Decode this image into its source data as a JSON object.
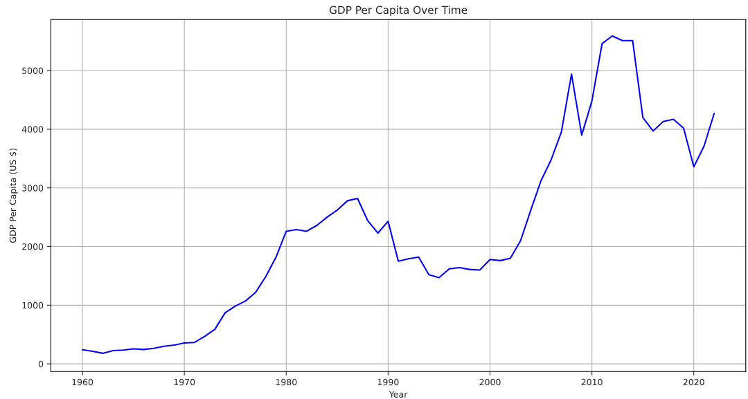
{
  "chart_data": {
    "type": "line",
    "title": "GDP Per Capita Over Time",
    "xlabel": "Year",
    "ylabel": "GDP Per Capita (US $)",
    "x": [
      1960,
      1961,
      1962,
      1963,
      1964,
      1965,
      1966,
      1967,
      1968,
      1969,
      1970,
      1971,
      1972,
      1973,
      1974,
      1975,
      1976,
      1977,
      1978,
      1979,
      1980,
      1981,
      1982,
      1983,
      1984,
      1985,
      1986,
      1987,
      1988,
      1989,
      1990,
      1991,
      1992,
      1993,
      1994,
      1995,
      1996,
      1997,
      1998,
      1999,
      2000,
      2001,
      2002,
      2003,
      2004,
      2005,
      2006,
      2007,
      2008,
      2009,
      2010,
      2011,
      2012,
      2013,
      2014,
      2015,
      2016,
      2017,
      2018,
      2019,
      2020,
      2021,
      2022
    ],
    "series": [
      {
        "color": "#0000ff",
        "values": [
          240,
          215,
          180,
          225,
          235,
          255,
          245,
          265,
          300,
          320,
          355,
          365,
          470,
          590,
          870,
          985,
          1070,
          1220,
          1490,
          1820,
          2260,
          2290,
          2260,
          2360,
          2500,
          2620,
          2780,
          2820,
          2440,
          2230,
          2430,
          1750,
          1790,
          1820,
          1520,
          1470,
          1620,
          1640,
          1610,
          1600,
          1780,
          1760,
          1800,
          2100,
          2620,
          3120,
          3480,
          3950,
          4940,
          3900,
          4480,
          5460,
          5590,
          5510,
          5510,
          4200,
          3970,
          4130,
          4170,
          4020,
          3360,
          3710,
          4270
        ]
      }
    ],
    "xlim": [
      1956.9,
      2025.1
    ],
    "xticks": [
      1960,
      1970,
      1980,
      1990,
      2000,
      2010,
      2020
    ],
    "ylim": [
      -130,
      5870
    ],
    "yticks": [
      0,
      1000,
      2000,
      3000,
      4000,
      5000
    ],
    "grid": true,
    "marker": "none",
    "line_style": "solid"
  }
}
